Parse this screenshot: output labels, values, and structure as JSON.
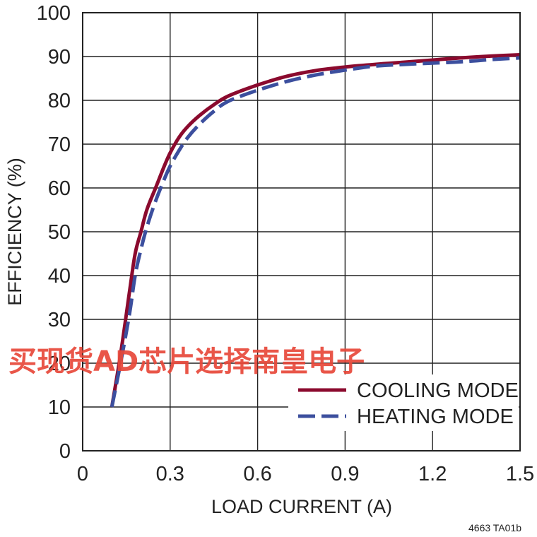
{
  "chart_data": {
    "type": "line",
    "xlabel": "LOAD CURRENT (A)",
    "ylabel": "EFFICIENCY (%)",
    "xlim": [
      0,
      1.5
    ],
    "ylim": [
      0,
      100
    ],
    "x_ticks": [
      "0",
      "0.3",
      "0.6",
      "0.9",
      "1.2",
      "1.5"
    ],
    "y_ticks": [
      "0",
      "10",
      "20",
      "30",
      "40",
      "50",
      "60",
      "70",
      "80",
      "90",
      "100"
    ],
    "grid": true,
    "legend_position": "bottom-right",
    "series": [
      {
        "name": "COOLING MODE",
        "color": "#8b0a2e",
        "style": "solid",
        "x": [
          0.1,
          0.13,
          0.16,
          0.18,
          0.2,
          0.22,
          0.25,
          0.28,
          0.3,
          0.33,
          0.36,
          0.4,
          0.45,
          0.5,
          0.6,
          0.7,
          0.8,
          0.9,
          1.0,
          1.1,
          1.2,
          1.3,
          1.4,
          1.5
        ],
        "values": [
          10,
          22,
          36,
          45,
          50,
          55,
          60,
          65,
          68,
          71.5,
          74,
          76.5,
          79,
          81,
          83.5,
          85.5,
          86.8,
          87.6,
          88.2,
          88.7,
          89.2,
          89.7,
          90.1,
          90.4
        ]
      },
      {
        "name": "HEATING MODE",
        "color": "#3c4f9e",
        "style": "dashed",
        "x": [
          0.1,
          0.13,
          0.16,
          0.18,
          0.2,
          0.22,
          0.25,
          0.28,
          0.3,
          0.33,
          0.36,
          0.4,
          0.45,
          0.5,
          0.6,
          0.7,
          0.8,
          0.9,
          1.0,
          1.1,
          1.2,
          1.3,
          1.4,
          1.5
        ],
        "values": [
          10,
          20,
          31,
          40,
          46,
          51,
          57,
          62,
          65,
          68.5,
          71.5,
          74.5,
          77.5,
          79.8,
          82.3,
          84.3,
          85.8,
          86.9,
          87.8,
          88.2,
          88.5,
          88.8,
          89.3,
          89.7
        ]
      }
    ],
    "figure_id": "4663 TA01b"
  },
  "watermark": {
    "text": "买现货AD芯片选择南皇电子",
    "color": "#e8483a"
  }
}
